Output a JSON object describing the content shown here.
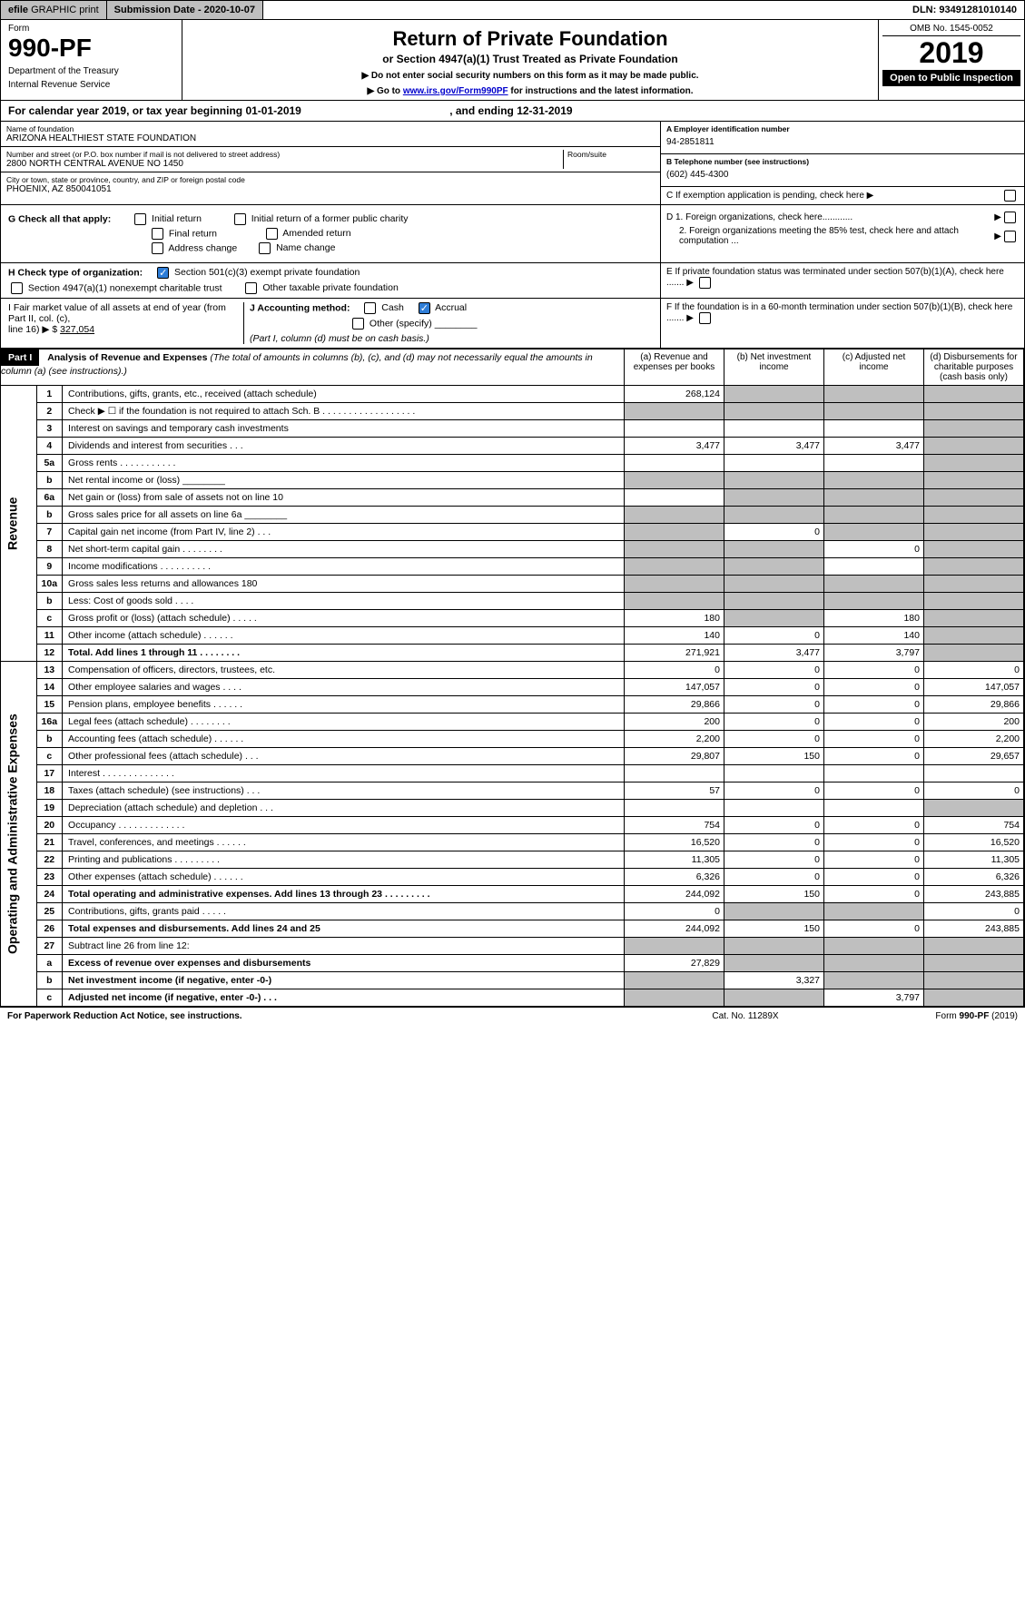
{
  "topbar": {
    "efile_prefix": "efile",
    "efile_rest": " GRAPHIC print",
    "submission_label": "Submission Date - 2020-10-07",
    "dln": "DLN: 93491281010140"
  },
  "header": {
    "form_word": "Form",
    "form_num": "990-PF",
    "dept1": "Department of the Treasury",
    "dept2": "Internal Revenue Service",
    "title": "Return of Private Foundation",
    "subtitle": "or Section 4947(a)(1) Trust Treated as Private Foundation",
    "note1": "▶ Do not enter social security numbers on this form as it may be made public.",
    "note2_pre": "▶ Go to ",
    "note2_link": "www.irs.gov/Form990PF",
    "note2_post": " for instructions and the latest information.",
    "omb": "OMB No. 1545-0052",
    "year": "2019",
    "open": "Open to Public Inspection"
  },
  "cal": {
    "text_pre": "For calendar year 2019, or tax year beginning ",
    "begin": "01-01-2019",
    "mid": " , and ending ",
    "end": "12-31-2019"
  },
  "info": {
    "name_label": "Name of foundation",
    "name": "ARIZONA HEALTHIEST STATE FOUNDATION",
    "addr_label": "Number and street (or P.O. box number if mail is not delivered to street address)",
    "addr": "2800 NORTH CENTRAL AVENUE NO 1450",
    "room_label": "Room/suite",
    "city_label": "City or town, state or province, country, and ZIP or foreign postal code",
    "city": "PHOENIX, AZ  850041051",
    "ein_label": "A Employer identification number",
    "ein": "94-2851811",
    "tel_label": "B Telephone number (see instructions)",
    "tel": "(602) 445-4300",
    "c_label": "C  If exemption application is pending, check here ▶"
  },
  "g": {
    "label": "G Check all that apply:",
    "opts": [
      "Initial return",
      "Initial return of a former public charity",
      "Final return",
      "Amended return",
      "Address change",
      "Name change"
    ]
  },
  "d": {
    "d1": "D 1. Foreign organizations, check here............",
    "d2": "2. Foreign organizations meeting the 85% test, check here and attach computation ...",
    "e": "E  If private foundation status was terminated under section 507(b)(1)(A), check here .......",
    "f": "F  If the foundation is in a 60-month termination under section 507(b)(1)(B), check here ......."
  },
  "h": {
    "label": "H Check type of organization:",
    "opt1": "Section 501(c)(3) exempt private foundation",
    "opt2": "Section 4947(a)(1) nonexempt charitable trust",
    "opt3": "Other taxable private foundation"
  },
  "i": {
    "label": "I Fair market value of all assets at end of year (from Part II, col. (c),",
    "line": "line 16) ▶ $",
    "val": "327,054"
  },
  "j": {
    "label": "J Accounting method:",
    "cash": "Cash",
    "accrual": "Accrual",
    "other": "Other (specify)",
    "note": "(Part I, column (d) must be on cash basis.)"
  },
  "part1": {
    "label": "Part I",
    "title": "Analysis of Revenue and Expenses",
    "title_note": " (The total of amounts in columns (b), (c), and (d) may not necessarily equal the amounts in column (a) (see instructions).)"
  },
  "cols": {
    "a": "(a) Revenue and expenses per books",
    "b": "(b) Net investment income",
    "c": "(c) Adjusted net income",
    "d": "(d) Disbursements for charitable purposes (cash basis only)"
  },
  "sections": {
    "rev": "Revenue",
    "exp": "Operating and Administrative Expenses"
  },
  "rows": [
    {
      "n": "1",
      "desc": "Contributions, gifts, grants, etc., received (attach schedule)",
      "a": "268,124",
      "b": "",
      "c": "",
      "d": "",
      "greyB": true,
      "greyC": true,
      "greyD": true
    },
    {
      "n": "2",
      "desc": "Check ▶ ☐ if the foundation is not required to attach Sch. B . . . . . . . . . . . . . . . . . .",
      "a": "",
      "b": "",
      "c": "",
      "d": "",
      "greyA": true,
      "greyB": true,
      "greyC": true,
      "greyD": true
    },
    {
      "n": "3",
      "desc": "Interest on savings and temporary cash investments",
      "a": "",
      "b": "",
      "c": "",
      "d": "",
      "greyD": true
    },
    {
      "n": "4",
      "desc": "Dividends and interest from securities   .  .  .",
      "a": "3,477",
      "b": "3,477",
      "c": "3,477",
      "d": "",
      "greyD": true
    },
    {
      "n": "5a",
      "desc": "Gross rents   .  .  .  .  .  .  .  .  .  .  .",
      "a": "",
      "b": "",
      "c": "",
      "d": "",
      "greyD": true
    },
    {
      "n": "b",
      "desc": "Net rental income or (loss) ________",
      "a": "",
      "b": "",
      "c": "",
      "d": "",
      "greyA": true,
      "greyB": true,
      "greyC": true,
      "greyD": true
    },
    {
      "n": "6a",
      "desc": "Net gain or (loss) from sale of assets not on line 10",
      "a": "",
      "b": "",
      "c": "",
      "d": "",
      "greyB": true,
      "greyC": true,
      "greyD": true
    },
    {
      "n": "b",
      "desc": "Gross sales price for all assets on line 6a ________",
      "a": "",
      "b": "",
      "c": "",
      "d": "",
      "greyA": true,
      "greyB": true,
      "greyC": true,
      "greyD": true
    },
    {
      "n": "7",
      "desc": "Capital gain net income (from Part IV, line 2)   .  .  .",
      "a": "",
      "b": "0",
      "c": "",
      "d": "",
      "greyA": true,
      "greyC": true,
      "greyD": true
    },
    {
      "n": "8",
      "desc": "Net short-term capital gain   .  .  .  .  .  .  .  .",
      "a": "",
      "b": "",
      "c": "0",
      "d": "",
      "greyA": true,
      "greyB": true,
      "greyD": true
    },
    {
      "n": "9",
      "desc": "Income modifications  .  .  .  .  .  .  .  .  .  .",
      "a": "",
      "b": "",
      "c": "",
      "d": "",
      "greyA": true,
      "greyB": true,
      "greyD": true
    },
    {
      "n": "10a",
      "desc": "Gross sales less returns and allowances              180",
      "a": "",
      "b": "",
      "c": "",
      "d": "",
      "greyA": true,
      "greyB": true,
      "greyC": true,
      "greyD": true
    },
    {
      "n": "b",
      "desc": "Less: Cost of goods sold   .  .  .  .",
      "a": "",
      "b": "",
      "c": "",
      "d": "",
      "greyA": true,
      "greyB": true,
      "greyC": true,
      "greyD": true
    },
    {
      "n": "c",
      "desc": "Gross profit or (loss) (attach schedule)   .  .  .  .  .",
      "a": "180",
      "b": "",
      "c": "180",
      "d": "",
      "greyB": true,
      "greyD": true
    },
    {
      "n": "11",
      "desc": "Other income (attach schedule)   .  .  .  .  .  .",
      "a": "140",
      "b": "0",
      "c": "140",
      "d": "",
      "greyD": true
    },
    {
      "n": "12",
      "desc": "Total. Add lines 1 through 11   .  .  .  .  .  .  .  .",
      "a": "271,921",
      "b": "3,477",
      "c": "3,797",
      "d": "",
      "bold": true,
      "greyD": true
    },
    {
      "n": "13",
      "desc": "Compensation of officers, directors, trustees, etc.",
      "a": "0",
      "b": "0",
      "c": "0",
      "d": "0",
      "sec": "exp"
    },
    {
      "n": "14",
      "desc": "Other employee salaries and wages   .  .  .  .",
      "a": "147,057",
      "b": "0",
      "c": "0",
      "d": "147,057"
    },
    {
      "n": "15",
      "desc": "Pension plans, employee benefits   .  .  .  .  .  .",
      "a": "29,866",
      "b": "0",
      "c": "0",
      "d": "29,866"
    },
    {
      "n": "16a",
      "desc": "Legal fees (attach schedule)  .  .  .  .  .  .  .  .",
      "a": "200",
      "b": "0",
      "c": "0",
      "d": "200"
    },
    {
      "n": "b",
      "desc": "Accounting fees (attach schedule)  .  .  .  .  .  .",
      "a": "2,200",
      "b": "0",
      "c": "0",
      "d": "2,200"
    },
    {
      "n": "c",
      "desc": "Other professional fees (attach schedule)   .  .  .",
      "a": "29,807",
      "b": "150",
      "c": "0",
      "d": "29,657"
    },
    {
      "n": "17",
      "desc": "Interest  .  .  .  .  .  .  .  .  .  .  .  .  .  .",
      "a": "",
      "b": "",
      "c": "",
      "d": ""
    },
    {
      "n": "18",
      "desc": "Taxes (attach schedule) (see instructions)   .  .  .",
      "a": "57",
      "b": "0",
      "c": "0",
      "d": "0"
    },
    {
      "n": "19",
      "desc": "Depreciation (attach schedule) and depletion   .  .  .",
      "a": "",
      "b": "",
      "c": "",
      "d": "",
      "greyD": true
    },
    {
      "n": "20",
      "desc": "Occupancy  .  .  .  .  .  .  .  .  .  .  .  .  .",
      "a": "754",
      "b": "0",
      "c": "0",
      "d": "754"
    },
    {
      "n": "21",
      "desc": "Travel, conferences, and meetings  .  .  .  .  .  .",
      "a": "16,520",
      "b": "0",
      "c": "0",
      "d": "16,520"
    },
    {
      "n": "22",
      "desc": "Printing and publications  .  .  .  .  .  .  .  .  .",
      "a": "11,305",
      "b": "0",
      "c": "0",
      "d": "11,305"
    },
    {
      "n": "23",
      "desc": "Other expenses (attach schedule)   .  .  .  .  .  .",
      "a": "6,326",
      "b": "0",
      "c": "0",
      "d": "6,326"
    },
    {
      "n": "24",
      "desc": "Total operating and administrative expenses. Add lines 13 through 23  .  .  .  .  .  .  .  .  .",
      "a": "244,092",
      "b": "150",
      "c": "0",
      "d": "243,885",
      "bold": true
    },
    {
      "n": "25",
      "desc": "Contributions, gifts, grants paid   .  .  .  .  .",
      "a": "0",
      "b": "",
      "c": "",
      "d": "0",
      "greyB": true,
      "greyC": true
    },
    {
      "n": "26",
      "desc": "Total expenses and disbursements. Add lines 24 and 25",
      "a": "244,092",
      "b": "150",
      "c": "0",
      "d": "243,885",
      "bold": true
    },
    {
      "n": "27",
      "desc": "Subtract line 26 from line 12:",
      "a": "",
      "b": "",
      "c": "",
      "d": "",
      "greyA": true,
      "greyB": true,
      "greyC": true,
      "greyD": true
    },
    {
      "n": "a",
      "desc": "Excess of revenue over expenses and disbursements",
      "a": "27,829",
      "b": "",
      "c": "",
      "d": "",
      "bold": true,
      "greyB": true,
      "greyC": true,
      "greyD": true
    },
    {
      "n": "b",
      "desc": "Net investment income (if negative, enter -0-)",
      "a": "",
      "b": "3,327",
      "c": "",
      "d": "",
      "bold": true,
      "greyA": true,
      "greyC": true,
      "greyD": true
    },
    {
      "n": "c",
      "desc": "Adjusted net income (if negative, enter -0-)  .  .  .",
      "a": "",
      "b": "",
      "c": "3,797",
      "d": "",
      "bold": true,
      "greyA": true,
      "greyB": true,
      "greyD": true
    }
  ],
  "footer": {
    "left": "For Paperwork Reduction Act Notice, see instructions.",
    "center": "Cat. No. 11289X",
    "right_pre": "Form ",
    "right_form": "990-PF",
    "right_post": " (2019)"
  }
}
